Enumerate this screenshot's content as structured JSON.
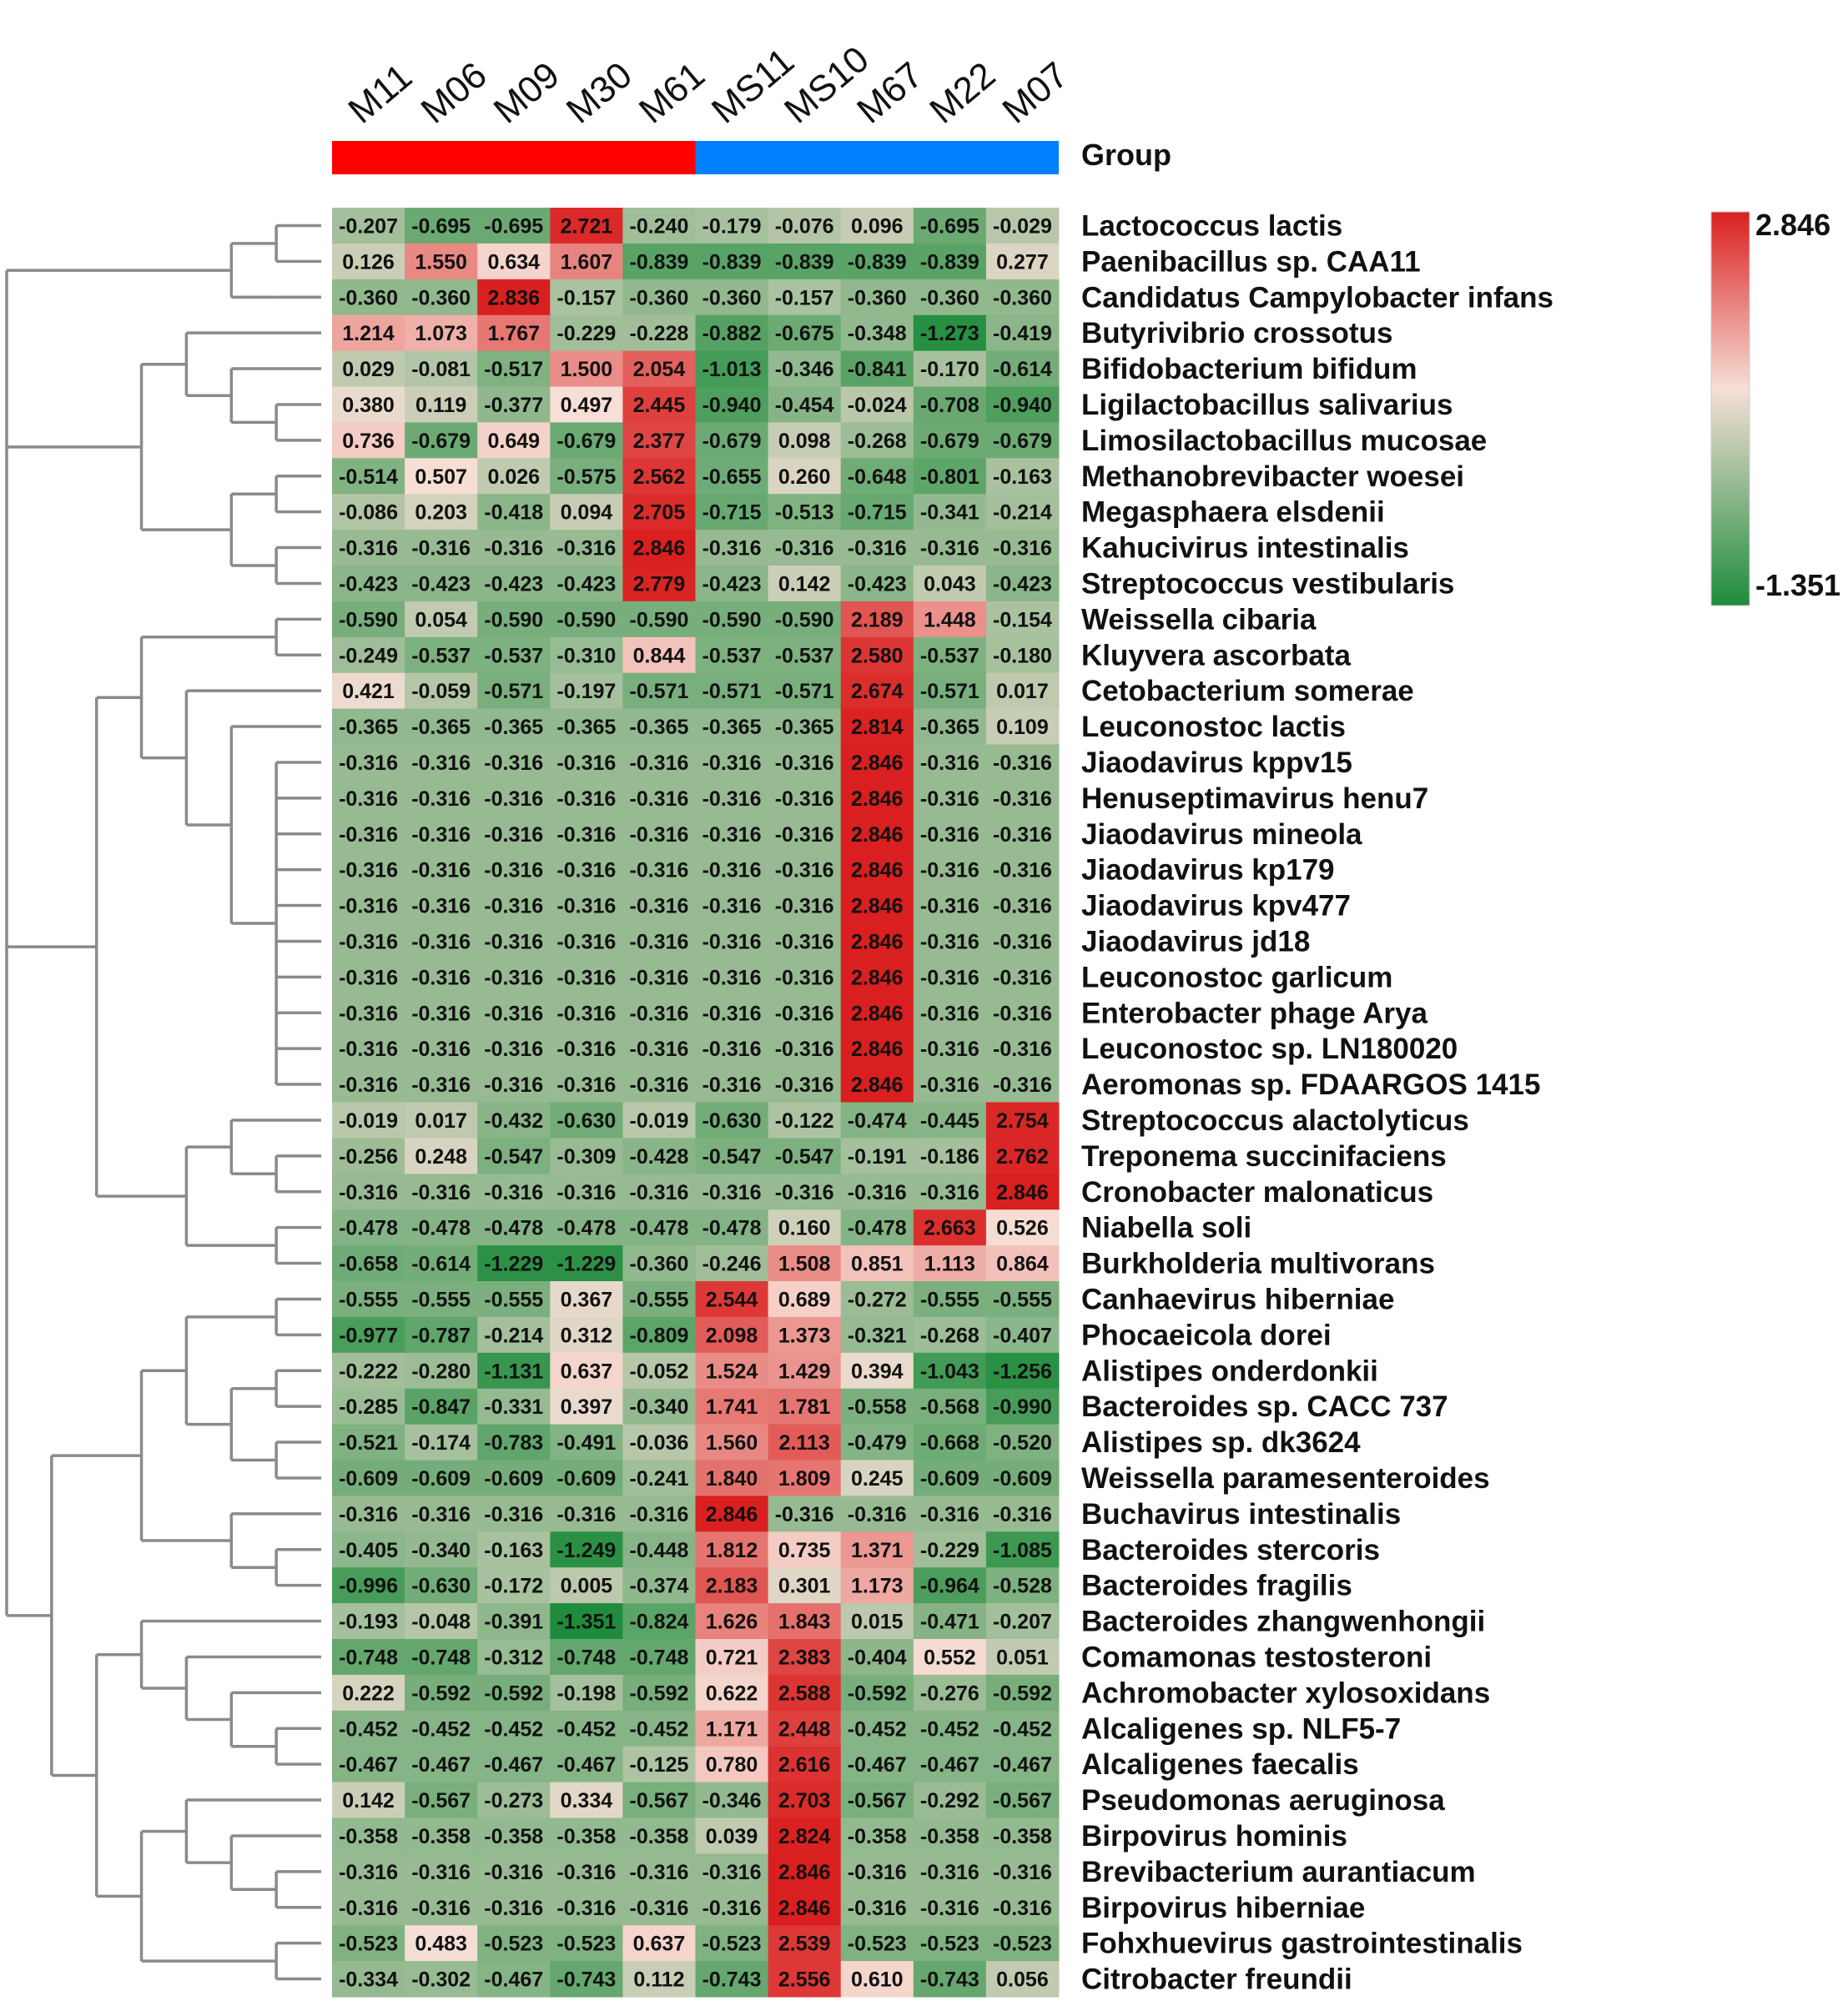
{
  "chart_data": {
    "type": "heatmap",
    "columns": [
      "M11",
      "M06",
      "M09",
      "M30",
      "M61",
      "MS11",
      "MS10",
      "M67",
      "M22",
      "M07"
    ],
    "group_label": "Group",
    "groups": [
      {
        "color": "#ff0000",
        "span": 5
      },
      {
        "color": "#0080ff",
        "span": 5
      }
    ],
    "color_scale": {
      "min": -1.351,
      "mid": 0.5,
      "max": 2.846,
      "min_label": "-1.351",
      "max_label": "2.846",
      "colors": [
        "#1e8c3c",
        "#f6dfd6",
        "#d91f1f"
      ]
    },
    "rows": [
      {
        "name": "Lactococcus lactis",
        "values": [
          "-0.207",
          "-0.695",
          "-0.695",
          "2.721",
          "-0.240",
          "-0.179",
          "-0.076",
          "0.096",
          "-0.695",
          "-0.029"
        ]
      },
      {
        "name": "Paenibacillus sp. CAA11",
        "values": [
          "0.126",
          "1.550",
          "0.634",
          "1.607",
          "-0.839",
          "-0.839",
          "-0.839",
          "-0.839",
          "-0.839",
          "0.277"
        ]
      },
      {
        "name": "Candidatus Campylobacter infans",
        "values": [
          "-0.360",
          "-0.360",
          "2.836",
          "-0.157",
          "-0.360",
          "-0.360",
          "-0.157",
          "-0.360",
          "-0.360",
          "-0.360"
        ]
      },
      {
        "name": "Butyrivibrio crossotus",
        "values": [
          "1.214",
          "1.073",
          "1.767",
          "-0.229",
          "-0.228",
          "-0.882",
          "-0.675",
          "-0.348",
          "-1.273",
          "-0.419"
        ]
      },
      {
        "name": "Bifidobacterium bifidum",
        "values": [
          "0.029",
          "-0.081",
          "-0.517",
          "1.500",
          "2.054",
          "-1.013",
          "-0.346",
          "-0.841",
          "-0.170",
          "-0.614"
        ]
      },
      {
        "name": "Ligilactobacillus salivarius",
        "values": [
          "0.380",
          "0.119",
          "-0.377",
          "0.497",
          "2.445",
          "-0.940",
          "-0.454",
          "-0.024",
          "-0.708",
          "-0.940"
        ]
      },
      {
        "name": "Limosilactobacillus mucosae",
        "values": [
          "0.736",
          "-0.679",
          "0.649",
          "-0.679",
          "2.377",
          "-0.679",
          "0.098",
          "-0.268",
          "-0.679",
          "-0.679"
        ]
      },
      {
        "name": "Methanobrevibacter woesei",
        "values": [
          "-0.514",
          "0.507",
          "0.026",
          "-0.575",
          "2.562",
          "-0.655",
          "0.260",
          "-0.648",
          "-0.801",
          "-0.163"
        ]
      },
      {
        "name": "Megasphaera elsdenii",
        "values": [
          "-0.086",
          "0.203",
          "-0.418",
          "0.094",
          "2.705",
          "-0.715",
          "-0.513",
          "-0.715",
          "-0.341",
          "-0.214"
        ]
      },
      {
        "name": "Kahucivirus intestinalis",
        "values": [
          "-0.316",
          "-0.316",
          "-0.316",
          "-0.316",
          "2.846",
          "-0.316",
          "-0.316",
          "-0.316",
          "-0.316",
          "-0.316"
        ]
      },
      {
        "name": "Streptococcus vestibularis",
        "values": [
          "-0.423",
          "-0.423",
          "-0.423",
          "-0.423",
          "2.779",
          "-0.423",
          "0.142",
          "-0.423",
          "0.043",
          "-0.423"
        ]
      },
      {
        "name": "Weissella cibaria",
        "values": [
          "-0.590",
          "0.054",
          "-0.590",
          "-0.590",
          "-0.590",
          "-0.590",
          "-0.590",
          "2.189",
          "1.448",
          "-0.154"
        ]
      },
      {
        "name": "Kluyvera ascorbata",
        "values": [
          "-0.249",
          "-0.537",
          "-0.537",
          "-0.310",
          "0.844",
          "-0.537",
          "-0.537",
          "2.580",
          "-0.537",
          "-0.180"
        ]
      },
      {
        "name": "Cetobacterium somerae",
        "values": [
          "0.421",
          "-0.059",
          "-0.571",
          "-0.197",
          "-0.571",
          "-0.571",
          "-0.571",
          "2.674",
          "-0.571",
          "0.017"
        ]
      },
      {
        "name": "Leuconostoc lactis",
        "values": [
          "-0.365",
          "-0.365",
          "-0.365",
          "-0.365",
          "-0.365",
          "-0.365",
          "-0.365",
          "2.814",
          "-0.365",
          "0.109"
        ]
      },
      {
        "name": "Jiaodavirus kppv15",
        "values": [
          "-0.316",
          "-0.316",
          "-0.316",
          "-0.316",
          "-0.316",
          "-0.316",
          "-0.316",
          "2.846",
          "-0.316",
          "-0.316"
        ]
      },
      {
        "name": "Henuseptimavirus henu7",
        "values": [
          "-0.316",
          "-0.316",
          "-0.316",
          "-0.316",
          "-0.316",
          "-0.316",
          "-0.316",
          "2.846",
          "-0.316",
          "-0.316"
        ]
      },
      {
        "name": "Jiaodavirus mineola",
        "values": [
          "-0.316",
          "-0.316",
          "-0.316",
          "-0.316",
          "-0.316",
          "-0.316",
          "-0.316",
          "2.846",
          "-0.316",
          "-0.316"
        ]
      },
      {
        "name": "Jiaodavirus kp179",
        "values": [
          "-0.316",
          "-0.316",
          "-0.316",
          "-0.316",
          "-0.316",
          "-0.316",
          "-0.316",
          "2.846",
          "-0.316",
          "-0.316"
        ]
      },
      {
        "name": "Jiaodavirus kpv477",
        "values": [
          "-0.316",
          "-0.316",
          "-0.316",
          "-0.316",
          "-0.316",
          "-0.316",
          "-0.316",
          "2.846",
          "-0.316",
          "-0.316"
        ]
      },
      {
        "name": "Jiaodavirus jd18",
        "values": [
          "-0.316",
          "-0.316",
          "-0.316",
          "-0.316",
          "-0.316",
          "-0.316",
          "-0.316",
          "2.846",
          "-0.316",
          "-0.316"
        ]
      },
      {
        "name": "Leuconostoc garlicum",
        "values": [
          "-0.316",
          "-0.316",
          "-0.316",
          "-0.316",
          "-0.316",
          "-0.316",
          "-0.316",
          "2.846",
          "-0.316",
          "-0.316"
        ]
      },
      {
        "name": "Enterobacter phage Arya",
        "values": [
          "-0.316",
          "-0.316",
          "-0.316",
          "-0.316",
          "-0.316",
          "-0.316",
          "-0.316",
          "2.846",
          "-0.316",
          "-0.316"
        ]
      },
      {
        "name": "Leuconostoc sp. LN180020",
        "values": [
          "-0.316",
          "-0.316",
          "-0.316",
          "-0.316",
          "-0.316",
          "-0.316",
          "-0.316",
          "2.846",
          "-0.316",
          "-0.316"
        ]
      },
      {
        "name": "Aeromonas sp. FDAARGOS 1415",
        "values": [
          "-0.316",
          "-0.316",
          "-0.316",
          "-0.316",
          "-0.316",
          "-0.316",
          "-0.316",
          "2.846",
          "-0.316",
          "-0.316"
        ]
      },
      {
        "name": "Streptococcus alactolyticus",
        "values": [
          "-0.019",
          "0.017",
          "-0.432",
          "-0.630",
          "-0.019",
          "-0.630",
          "-0.122",
          "-0.474",
          "-0.445",
          "2.754"
        ]
      },
      {
        "name": "Treponema succinifaciens",
        "values": [
          "-0.256",
          "0.248",
          "-0.547",
          "-0.309",
          "-0.428",
          "-0.547",
          "-0.547",
          "-0.191",
          "-0.186",
          "2.762"
        ]
      },
      {
        "name": "Cronobacter malonaticus",
        "values": [
          "-0.316",
          "-0.316",
          "-0.316",
          "-0.316",
          "-0.316",
          "-0.316",
          "-0.316",
          "-0.316",
          "-0.316",
          "2.846"
        ]
      },
      {
        "name": "Niabella soli",
        "values": [
          "-0.478",
          "-0.478",
          "-0.478",
          "-0.478",
          "-0.478",
          "-0.478",
          "0.160",
          "-0.478",
          "2.663",
          "0.526"
        ]
      },
      {
        "name": "Burkholderia multivorans",
        "values": [
          "-0.658",
          "-0.614",
          "-1.229",
          "-1.229",
          "-0.360",
          "-0.246",
          "1.508",
          "0.851",
          "1.113",
          "0.864"
        ]
      },
      {
        "name": "Canhaevirus hiberniae",
        "values": [
          "-0.555",
          "-0.555",
          "-0.555",
          "0.367",
          "-0.555",
          "2.544",
          "0.689",
          "-0.272",
          "-0.555",
          "-0.555"
        ]
      },
      {
        "name": "Phocaeicola dorei",
        "values": [
          "-0.977",
          "-0.787",
          "-0.214",
          "0.312",
          "-0.809",
          "2.098",
          "1.373",
          "-0.321",
          "-0.268",
          "-0.407"
        ]
      },
      {
        "name": "Alistipes onderdonkii",
        "values": [
          "-0.222",
          "-0.280",
          "-1.131",
          "0.637",
          "-0.052",
          "1.524",
          "1.429",
          "0.394",
          "-1.043",
          "-1.256"
        ]
      },
      {
        "name": "Bacteroides sp. CACC 737",
        "values": [
          "-0.285",
          "-0.847",
          "-0.331",
          "0.397",
          "-0.340",
          "1.741",
          "1.781",
          "-0.558",
          "-0.568",
          "-0.990"
        ]
      },
      {
        "name": "Alistipes sp. dk3624",
        "values": [
          "-0.521",
          "-0.174",
          "-0.783",
          "-0.491",
          "-0.036",
          "1.560",
          "2.113",
          "-0.479",
          "-0.668",
          "-0.520"
        ]
      },
      {
        "name": "Weissella paramesenteroides",
        "values": [
          "-0.609",
          "-0.609",
          "-0.609",
          "-0.609",
          "-0.241",
          "1.840",
          "1.809",
          "0.245",
          "-0.609",
          "-0.609"
        ]
      },
      {
        "name": "Buchavirus intestinalis",
        "values": [
          "-0.316",
          "-0.316",
          "-0.316",
          "-0.316",
          "-0.316",
          "2.846",
          "-0.316",
          "-0.316",
          "-0.316",
          "-0.316"
        ]
      },
      {
        "name": "Bacteroides stercoris",
        "values": [
          "-0.405",
          "-0.340",
          "-0.163",
          "-1.249",
          "-0.448",
          "1.812",
          "0.735",
          "1.371",
          "-0.229",
          "-1.085"
        ]
      },
      {
        "name": "Bacteroides fragilis",
        "values": [
          "-0.996",
          "-0.630",
          "-0.172",
          "0.005",
          "-0.374",
          "2.183",
          "0.301",
          "1.173",
          "-0.964",
          "-0.528"
        ]
      },
      {
        "name": "Bacteroides zhangwenhongii",
        "values": [
          "-0.193",
          "-0.048",
          "-0.391",
          "-1.351",
          "-0.824",
          "1.626",
          "1.843",
          "0.015",
          "-0.471",
          "-0.207"
        ]
      },
      {
        "name": "Comamonas testosteroni",
        "values": [
          "-0.748",
          "-0.748",
          "-0.312",
          "-0.748",
          "-0.748",
          "0.721",
          "2.383",
          "-0.404",
          "0.552",
          "0.051"
        ]
      },
      {
        "name": "Achromobacter xylosoxidans",
        "values": [
          "0.222",
          "-0.592",
          "-0.592",
          "-0.198",
          "-0.592",
          "0.622",
          "2.588",
          "-0.592",
          "-0.276",
          "-0.592"
        ]
      },
      {
        "name": "Alcaligenes sp. NLF5-7",
        "values": [
          "-0.452",
          "-0.452",
          "-0.452",
          "-0.452",
          "-0.452",
          "1.171",
          "2.448",
          "-0.452",
          "-0.452",
          "-0.452"
        ]
      },
      {
        "name": "Alcaligenes faecalis",
        "values": [
          "-0.467",
          "-0.467",
          "-0.467",
          "-0.467",
          "-0.125",
          "0.780",
          "2.616",
          "-0.467",
          "-0.467",
          "-0.467"
        ]
      },
      {
        "name": "Pseudomonas aeruginosa",
        "values": [
          "0.142",
          "-0.567",
          "-0.273",
          "0.334",
          "-0.567",
          "-0.346",
          "2.703",
          "-0.567",
          "-0.292",
          "-0.567"
        ]
      },
      {
        "name": "Birpovirus hominis",
        "values": [
          "-0.358",
          "-0.358",
          "-0.358",
          "-0.358",
          "-0.358",
          "0.039",
          "2.824",
          "-0.358",
          "-0.358",
          "-0.358"
        ]
      },
      {
        "name": "Brevibacterium aurantiacum",
        "values": [
          "-0.316",
          "-0.316",
          "-0.316",
          "-0.316",
          "-0.316",
          "-0.316",
          "2.846",
          "-0.316",
          "-0.316",
          "-0.316"
        ]
      },
      {
        "name": "Birpovirus hiberniae",
        "values": [
          "-0.316",
          "-0.316",
          "-0.316",
          "-0.316",
          "-0.316",
          "-0.316",
          "2.846",
          "-0.316",
          "-0.316",
          "-0.316"
        ]
      },
      {
        "name": "Fohxhuevirus gastrointestinalis",
        "values": [
          "-0.523",
          "0.483",
          "-0.523",
          "-0.523",
          "0.637",
          "-0.523",
          "2.539",
          "-0.523",
          "-0.523",
          "-0.523"
        ]
      },
      {
        "name": "Citrobacter freundii",
        "values": [
          "-0.334",
          "-0.302",
          "-0.467",
          "-0.743",
          "0.112",
          "-0.743",
          "2.556",
          "0.610",
          "-0.743",
          "0.056"
        ]
      }
    ],
    "row_dendrogram": [
      [
        [
          0,
          1
        ],
        [
          2
        ]
      ],
      [
        [
          3,
          [
            4,
            [
              5,
              6
            ]
          ]
        ],
        [
          [
            7,
            8
          ],
          [
            9,
            10
          ]
        ]
      ],
      [
        [
          [
            11,
            12
          ],
          [
            13,
            [
              14,
              [
                15,
                16,
                17,
                18,
                19,
                20,
                21,
                22,
                23,
                24
              ]
            ]
          ]
        ],
        [
          [
            [
              25,
              [
                26,
                27
              ]
            ],
            [
              28,
              29
            ]
          ]
        ]
      ],
      [
        [
          [
            [
              30,
              31
            ],
            [
              [
                32,
                33
              ],
              [
                34,
                35
              ]
            ]
          ],
          [
            36,
            [
              37,
              38
            ]
          ]
        ],
        [
          [
            39,
            [
              40,
              [
                41,
                [
                  42,
                  43
                ]
              ]
            ]
          ],
          [
            [
              44,
              [
                45,
                [
                  46,
                  47
                ]
              ]
            ],
            [
              48,
              49
            ]
          ]
        ]
      ]
    ]
  }
}
